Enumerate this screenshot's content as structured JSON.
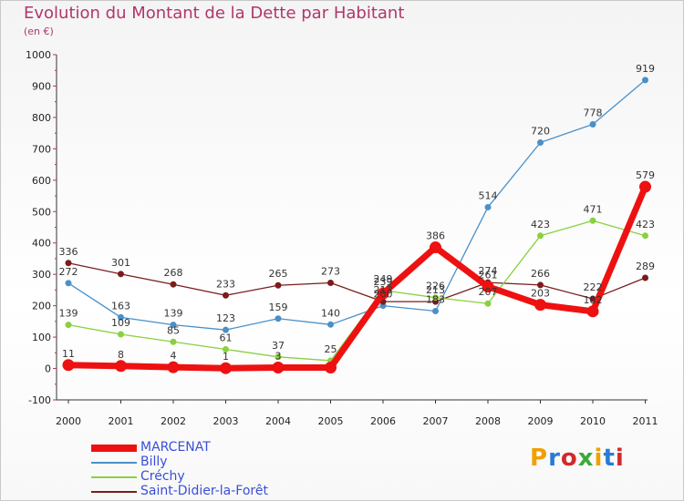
{
  "header": {
    "title": "Evolution du Montant de la Dette par Habitant",
    "subtitle": "(en €)"
  },
  "logo": {
    "text": "Proxiti",
    "colors": [
      "#f0a000",
      "#2a7ad6",
      "#d12a2a",
      "#3aaa3a",
      "#f0a000",
      "#2a7ad6",
      "#d12a2a"
    ]
  },
  "chart_data": {
    "type": "line",
    "title": "Evolution du Montant de la Dette par Habitant",
    "subtitle": "(en €)",
    "x": [
      "2000",
      "2001",
      "2002",
      "2003",
      "2004",
      "2005",
      "2006",
      "2007",
      "2008",
      "2009",
      "2010",
      "2011"
    ],
    "ylim": [
      -100,
      1000
    ],
    "yticks": [
      -100,
      0,
      100,
      200,
      300,
      400,
      500,
      600,
      700,
      800,
      900,
      1000
    ],
    "grid": false,
    "legend": "bottom-left",
    "series": [
      {
        "name": "Billy",
        "color": "#4a90c8",
        "values": [
          272,
          163,
          139,
          123,
          159,
          140,
          200,
          183,
          514,
          720,
          778,
          919
        ],
        "labels": [
          "272",
          "163",
          "139",
          "123",
          "159",
          "140",
          "200",
          "183",
          "514",
          "720",
          "778",
          "919"
        ]
      },
      {
        "name": "Saint-Didier-la-Forêt",
        "color": "#7a1c1c",
        "values": [
          336,
          301,
          268,
          233,
          265,
          273,
          213,
          213,
          274,
          266,
          222,
          289
        ],
        "labels": [
          "336",
          "301",
          "268",
          "233",
          "265",
          "273",
          "213",
          "213",
          "274",
          "266",
          "222",
          "289"
        ]
      },
      {
        "name": "Créchy",
        "color": "#8ad040",
        "values": [
          139,
          109,
          85,
          61,
          37,
          25,
          249,
          226,
          207,
          423,
          471,
          423
        ],
        "labels": [
          "139",
          "109",
          "85",
          "61",
          "37",
          "25",
          "249",
          "226",
          "207",
          "423",
          "471",
          "423"
        ]
      },
      {
        "name": "MARCENAT",
        "color": "#ee1111",
        "values": [
          11,
          8,
          4,
          1,
          3,
          3,
          239,
          386,
          261,
          203,
          182,
          579
        ],
        "labels": [
          "11",
          "8",
          "4",
          "1",
          "3",
          "",
          "239",
          "386",
          "261",
          "203",
          "182",
          "579"
        ]
      }
    ],
    "legend_order": [
      "MARCENAT",
      "Billy",
      "Créchy",
      "Saint-Didier-la-Forêt"
    ]
  }
}
